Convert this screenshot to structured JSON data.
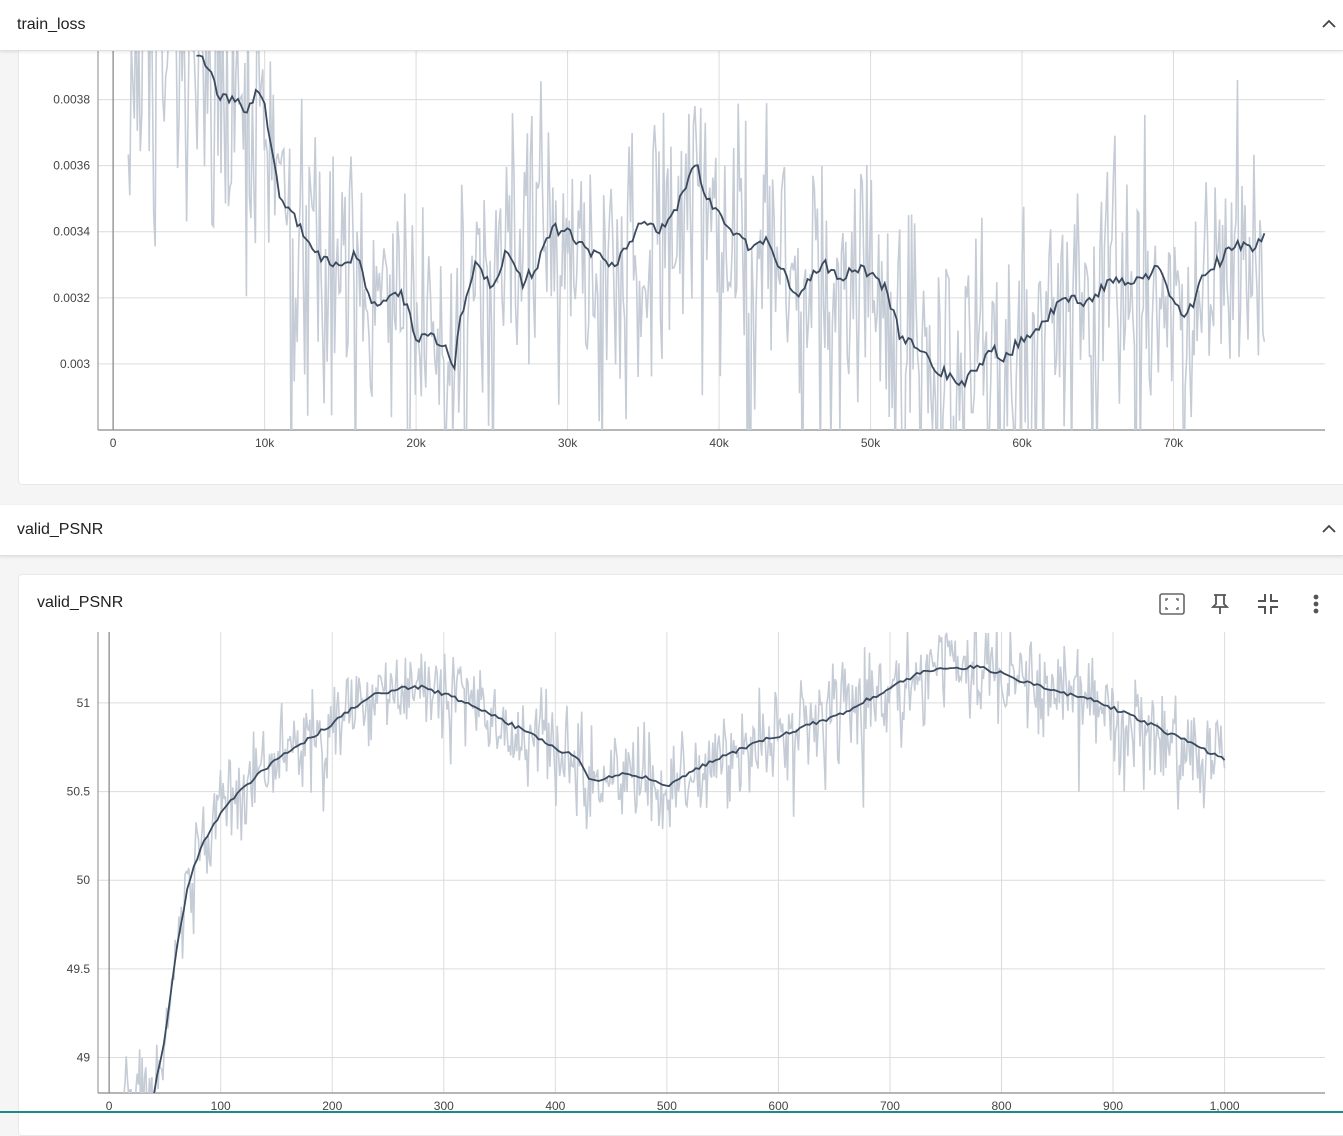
{
  "sections": [
    {
      "title": "train_loss"
    },
    {
      "title": "valid_PSNR"
    }
  ],
  "card2": {
    "title": "valid_PSNR",
    "toolbar": [
      "fit-domain-icon",
      "pin-icon",
      "collapse-plot-icon",
      "more-vert-icon"
    ]
  },
  "colors": {
    "smoothed": "#3b4a5e",
    "raw": "#c5ccd6",
    "grid": "#dcdcdc",
    "axis": "#8a8a8a"
  },
  "chart_data": [
    {
      "type": "line",
      "title": "train_loss",
      "xlabel": "",
      "ylabel": "",
      "xlim": [
        -1000,
        80000
      ],
      "ylim": [
        0.0028,
        0.00395
      ],
      "x_ticks": [
        "0",
        "10k",
        "20k",
        "30k",
        "40k",
        "50k",
        "60k",
        "70k"
      ],
      "x_tick_values": [
        0,
        10000,
        20000,
        30000,
        40000,
        50000,
        60000,
        70000
      ],
      "y_ticks": [
        "0.003",
        "0.0032",
        "0.0034",
        "0.0036",
        "0.0038"
      ],
      "y_tick_values": [
        0.003,
        0.0032,
        0.0034,
        0.0036,
        0.0038
      ],
      "grid": true,
      "series": [
        {
          "values_smoothed": {
            "x": [
              5500,
              6000,
              7000,
              8000,
              9000,
              9500,
              10000,
              11000,
              12000,
              13000,
              14000,
              15000,
              16000,
              17000,
              18000,
              19000,
              20000,
              21000,
              22000,
              22500,
              23000,
              24000,
              25000,
              26000,
              27000,
              28000,
              29000,
              30000,
              31000,
              32000,
              33000,
              34000,
              35000,
              36000,
              37000,
              38000,
              38500,
              39000,
              40000,
              41000,
              42000,
              43000,
              44000,
              45000,
              46000,
              47000,
              48000,
              49000,
              50000,
              51000,
              52000,
              53000,
              54000,
              55000,
              56000,
              57000,
              58000,
              59000,
              60000,
              61000,
              62000,
              63000,
              64000,
              65000,
              66000,
              67000,
              68000,
              69000,
              70000,
              71000,
              72000,
              73000,
              74000,
              75000,
              76000
            ],
            "y": [
              0.00395,
              0.00392,
              0.00381,
              0.00379,
              0.00377,
              0.00384,
              0.00378,
              0.0035,
              0.00344,
              0.00335,
              0.00332,
              0.00328,
              0.00333,
              0.0032,
              0.00318,
              0.00323,
              0.00307,
              0.00308,
              0.00305,
              0.00299,
              0.00315,
              0.00332,
              0.00322,
              0.00335,
              0.00324,
              0.0033,
              0.00341,
              0.0034,
              0.00335,
              0.00332,
              0.0033,
              0.00336,
              0.00344,
              0.0034,
              0.00346,
              0.00356,
              0.00363,
              0.0035,
              0.00346,
              0.0034,
              0.00335,
              0.00338,
              0.0033,
              0.0032,
              0.00326,
              0.0033,
              0.00325,
              0.00329,
              0.00328,
              0.00323,
              0.00308,
              0.00305,
              0.003,
              0.00297,
              0.00294,
              0.00298,
              0.00304,
              0.00302,
              0.00308,
              0.0031,
              0.00316,
              0.0032,
              0.00318,
              0.00322,
              0.00326,
              0.00323,
              0.00326,
              0.0033,
              0.00318,
              0.00315,
              0.00328,
              0.00331,
              0.00336,
              0.00335,
              0.00338
            ]
          }
        }
      ]
    },
    {
      "type": "line",
      "title": "valid_PSNR",
      "xlabel": "",
      "ylabel": "",
      "xlim": [
        -10,
        1090
      ],
      "ylim": [
        48.8,
        51.4
      ],
      "x_ticks": [
        "0",
        "100",
        "200",
        "300",
        "400",
        "500",
        "600",
        "700",
        "800",
        "900",
        "1,000"
      ],
      "x_tick_values": [
        0,
        100,
        200,
        300,
        400,
        500,
        600,
        700,
        800,
        900,
        1000
      ],
      "y_ticks": [
        "49",
        "49.5",
        "50",
        "50.5",
        "51"
      ],
      "y_tick_values": [
        49,
        49.5,
        50,
        50.5,
        51
      ],
      "grid": true,
      "series": [
        {
          "values_smoothed": {
            "x": [
              40,
              50,
              60,
              70,
              80,
              90,
              100,
              120,
              140,
              160,
              180,
              200,
              220,
              240,
              260,
              280,
              300,
              320,
              340,
              360,
              380,
              400,
              420,
              430,
              440,
              460,
              480,
              500,
              520,
              540,
              560,
              580,
              600,
              620,
              640,
              660,
              680,
              700,
              720,
              740,
              760,
              780,
              800,
              820,
              840,
              860,
              880,
              900,
              920,
              940,
              960,
              980,
              1000
            ],
            "y": [
              48.8,
              49.1,
              49.6,
              49.95,
              50.15,
              50.28,
              50.38,
              50.52,
              50.63,
              50.72,
              50.8,
              50.88,
              50.98,
              51.05,
              51.08,
              51.09,
              51.05,
              51.0,
              50.95,
              50.88,
              50.82,
              50.74,
              50.7,
              50.57,
              50.56,
              50.6,
              50.58,
              50.52,
              50.61,
              50.67,
              50.72,
              50.78,
              50.81,
              50.86,
              50.9,
              50.95,
              51.02,
              51.08,
              51.15,
              51.19,
              51.2,
              51.2,
              51.17,
              51.12,
              51.08,
              51.05,
              51.02,
              50.97,
              50.92,
              50.86,
              50.8,
              50.74,
              50.68
            ]
          }
        }
      ]
    }
  ]
}
